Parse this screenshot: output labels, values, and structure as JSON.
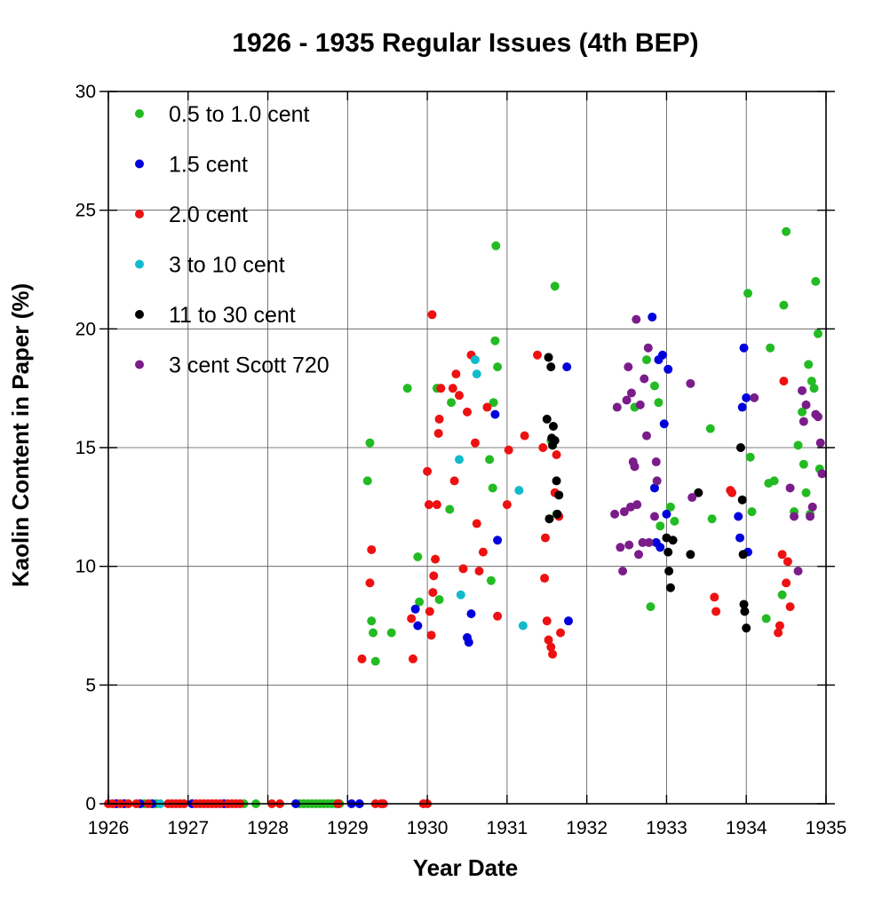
{
  "chart_data": {
    "type": "scatter",
    "title": "1926 - 1935  Regular Issues (4th BEP)",
    "xlabel": "Year Date",
    "ylabel": "Kaolin Content in Paper (%)",
    "xlim": [
      1926,
      1935
    ],
    "ylim": [
      0,
      30
    ],
    "xticks": [
      "1926",
      "1927",
      "1928",
      "1929",
      "1930",
      "1931",
      "1932",
      "1933",
      "1934",
      "1935"
    ],
    "yticks": [
      "0",
      "5",
      "10",
      "15",
      "20",
      "25",
      "30"
    ],
    "grid": true,
    "legend_position": "top-left",
    "series": [
      {
        "name": "0.5 to 1.0 cent",
        "color": "#22bb22",
        "x": [
          1926.45,
          1926.6,
          1927.7,
          1927.85,
          1928.4,
          1928.45,
          1928.5,
          1928.55,
          1928.6,
          1928.65,
          1928.7,
          1928.75,
          1928.8,
          1928.85,
          1928.9,
          1929.25,
          1929.28,
          1929.3,
          1929.32,
          1929.35,
          1929.55,
          1929.75,
          1929.88,
          1929.9,
          1930.12,
          1930.15,
          1930.28,
          1930.3,
          1930.78,
          1930.8,
          1930.82,
          1930.83,
          1930.85,
          1930.86,
          1930.88,
          1931.55,
          1931.6,
          1931.62,
          1932.6,
          1932.75,
          1932.8,
          1932.85,
          1932.9,
          1932.92,
          1933.05,
          1933.1,
          1933.55,
          1933.57,
          1934.02,
          1934.05,
          1934.07,
          1934.25,
          1934.28,
          1934.3,
          1934.35,
          1934.45,
          1934.47,
          1934.5,
          1934.6,
          1934.65,
          1934.7,
          1934.72,
          1934.75,
          1934.78,
          1934.8,
          1934.82,
          1934.85,
          1934.87,
          1934.9,
          1934.92
        ],
        "y": [
          0,
          0,
          0,
          0,
          0,
          0,
          0,
          0,
          0,
          0,
          0,
          0,
          0,
          0,
          0,
          13.6,
          15.2,
          7.7,
          7.2,
          6.0,
          7.2,
          17.5,
          10.4,
          8.5,
          17.5,
          8.6,
          12.4,
          16.9,
          14.5,
          9.4,
          13.3,
          16.9,
          19.5,
          23.5,
          18.4,
          15.3,
          21.8,
          12.2,
          16.7,
          18.7,
          8.3,
          17.6,
          16.9,
          11.7,
          12.5,
          11.9,
          15.8,
          12.0,
          21.5,
          14.6,
          12.3,
          7.8,
          13.5,
          19.2,
          13.6,
          8.8,
          21.0,
          24.1,
          12.3,
          15.1,
          16.5,
          14.3,
          13.1,
          18.5,
          12.2,
          17.8,
          17.5,
          22.0,
          19.8,
          14.1
        ]
      },
      {
        "name": " 1.5 cent",
        "color": "#0000dd",
        "x": [
          1926.1,
          1926.2,
          1926.4,
          1926.55,
          1927.05,
          1927.45,
          1928.35,
          1929.05,
          1929.15,
          1929.85,
          1929.88,
          1930.5,
          1930.52,
          1930.55,
          1930.85,
          1930.88,
          1931.75,
          1931.77,
          1932.82,
          1932.85,
          1932.87,
          1932.9,
          1932.92,
          1932.95,
          1932.97,
          1933.0,
          1933.02,
          1933.9,
          1933.92,
          1933.95,
          1933.97,
          1934.0,
          1934.02
        ],
        "y": [
          0,
          0,
          0,
          0,
          0,
          0,
          0,
          0,
          0,
          8.2,
          7.5,
          7.0,
          6.8,
          8.0,
          16.4,
          11.1,
          18.4,
          7.7,
          20.5,
          13.3,
          11.0,
          18.7,
          10.8,
          18.9,
          16.0,
          12.2,
          18.3,
          12.1,
          11.2,
          16.7,
          19.2,
          17.1,
          10.6
        ]
      },
      {
        "name": "2.0 cent",
        "color": "#ee1111",
        "x": [
          1926.0,
          1926.05,
          1926.15,
          1926.25,
          1926.35,
          1926.5,
          1926.75,
          1926.8,
          1926.85,
          1926.9,
          1926.95,
          1927.1,
          1927.15,
          1927.2,
          1927.25,
          1927.3,
          1927.35,
          1927.4,
          1927.5,
          1927.55,
          1927.6,
          1927.65,
          1928.05,
          1928.15,
          1928.88,
          1929.35,
          1929.42,
          1929.45,
          1929.95,
          1930.0,
          1929.18,
          1929.28,
          1929.3,
          1929.8,
          1929.82,
          1930.0,
          1930.02,
          1930.03,
          1930.05,
          1930.06,
          1930.07,
          1930.08,
          1930.1,
          1930.12,
          1930.14,
          1930.15,
          1930.17,
          1930.32,
          1930.34,
          1930.36,
          1930.4,
          1930.45,
          1930.5,
          1930.55,
          1930.6,
          1930.62,
          1930.65,
          1930.7,
          1930.75,
          1930.88,
          1931.0,
          1931.02,
          1931.22,
          1931.38,
          1931.45,
          1931.47,
          1931.48,
          1931.5,
          1931.52,
          1931.55,
          1931.57,
          1931.6,
          1931.62,
          1931.65,
          1931.67,
          1933.6,
          1933.62,
          1933.8,
          1933.82,
          1934.4,
          1934.42,
          1934.45,
          1934.47,
          1934.5,
          1934.52,
          1934.55
        ],
        "y": [
          0,
          0,
          0,
          0,
          0,
          0,
          0,
          0,
          0,
          0,
          0,
          0,
          0,
          0,
          0,
          0,
          0,
          0,
          0,
          0,
          0,
          0,
          0,
          0,
          0,
          0,
          0,
          0,
          0,
          0,
          6.1,
          9.3,
          10.7,
          7.8,
          6.1,
          14.0,
          12.6,
          8.1,
          7.1,
          20.6,
          8.9,
          9.6,
          10.3,
          12.6,
          15.6,
          16.2,
          17.5,
          17.5,
          13.6,
          18.1,
          17.2,
          9.9,
          16.5,
          18.9,
          15.2,
          11.8,
          9.8,
          10.6,
          16.7,
          7.9,
          12.6,
          14.9,
          15.5,
          18.9,
          15.0,
          9.5,
          11.2,
          7.7,
          6.9,
          6.6,
          6.3,
          13.1,
          14.7,
          12.1,
          7.2,
          8.7,
          8.1,
          13.2,
          13.1,
          7.2,
          7.5,
          10.5,
          17.8,
          9.3,
          10.2,
          8.3
        ]
      },
      {
        "name": "3 to 10 cent",
        "color": "#11bbcc",
        "x": [
          1926.65,
          1930.4,
          1930.42,
          1930.6,
          1930.62,
          1931.15,
          1931.2
        ],
        "y": [
          0,
          14.5,
          8.8,
          18.7,
          18.1,
          13.2,
          7.5
        ]
      },
      {
        "name": "11 to 30 cent",
        "color": "#000000",
        "x": [
          1931.5,
          1931.52,
          1931.55,
          1931.57,
          1931.58,
          1931.6,
          1931.62,
          1931.63,
          1931.65,
          1931.53,
          1931.56,
          1933.0,
          1933.02,
          1933.03,
          1933.05,
          1933.08,
          1933.3,
          1933.4,
          1933.93,
          1933.95,
          1933.96,
          1933.97,
          1933.98,
          1934.0
        ],
        "y": [
          16.2,
          18.8,
          18.4,
          15.1,
          15.9,
          15.3,
          13.6,
          12.2,
          13.0,
          12.0,
          15.4,
          11.2,
          10.6,
          9.8,
          9.1,
          11.1,
          10.5,
          13.1,
          15.0,
          12.8,
          10.5,
          8.4,
          8.1,
          7.4
        ]
      },
      {
        "name": "3 cent Scott 720",
        "color": "#7a1d8a",
        "x": [
          1932.35,
          1932.38,
          1932.42,
          1932.45,
          1932.47,
          1932.5,
          1932.52,
          1932.53,
          1932.55,
          1932.56,
          1932.58,
          1932.6,
          1932.62,
          1932.63,
          1932.65,
          1932.67,
          1932.7,
          1932.72,
          1932.75,
          1932.77,
          1932.78,
          1932.85,
          1932.87,
          1932.88,
          1933.3,
          1933.32,
          1934.1,
          1934.55,
          1934.6,
          1934.65,
          1934.7,
          1934.72,
          1934.75,
          1934.8,
          1934.83,
          1934.87,
          1934.9,
          1934.93,
          1934.95
        ],
        "y": [
          12.2,
          16.7,
          10.8,
          9.8,
          12.3,
          17.0,
          18.4,
          10.9,
          12.5,
          17.3,
          14.4,
          14.2,
          20.4,
          12.6,
          10.5,
          16.8,
          11.0,
          17.9,
          15.5,
          19.2,
          11.0,
          12.1,
          14.4,
          13.6,
          17.7,
          12.9,
          17.1,
          13.3,
          12.1,
          9.8,
          17.4,
          16.1,
          16.8,
          12.1,
          12.5,
          16.4,
          16.3,
          15.2,
          13.9
        ]
      }
    ]
  }
}
